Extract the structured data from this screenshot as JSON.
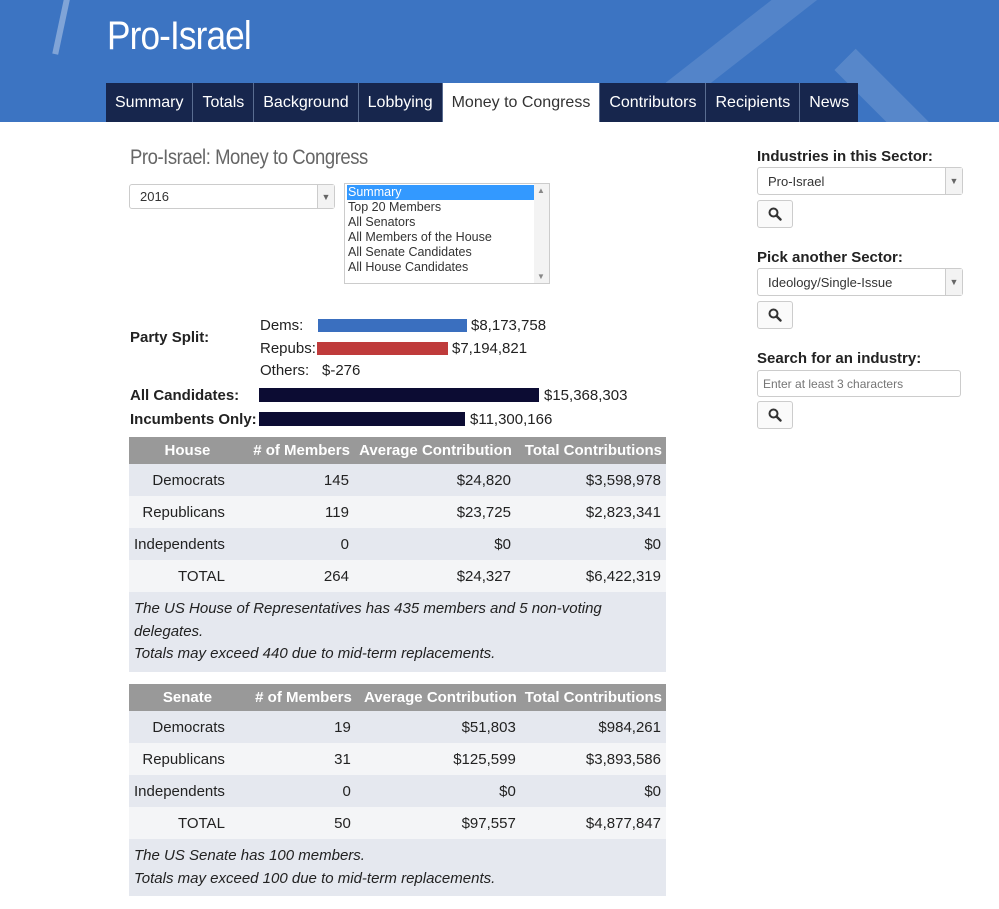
{
  "site": {
    "title": "Pro-Israel"
  },
  "nav": [
    {
      "label": "Summary",
      "active": false
    },
    {
      "label": "Totals",
      "active": false
    },
    {
      "label": "Background",
      "active": false
    },
    {
      "label": "Lobbying",
      "active": false
    },
    {
      "label": "Money to Congress",
      "active": true
    },
    {
      "label": "Contributors",
      "active": false
    },
    {
      "label": "Recipients",
      "active": false
    },
    {
      "label": "News",
      "active": false
    }
  ],
  "main": {
    "heading": "Pro-Israel: Money to Congress",
    "year_select": {
      "value": "2016"
    },
    "view_list": {
      "options": [
        "Summary",
        "Top 20 Members",
        "All Senators",
        "All Members of the House",
        "All Senate Candidates",
        "All House Candidates"
      ],
      "selected": "Summary"
    },
    "party_split": {
      "label": "Party Split:",
      "dems": {
        "label": "Dems:",
        "value": "$8,173,758",
        "amount": 8173758,
        "color": "#3a6fbf"
      },
      "repubs": {
        "label": "Repubs:",
        "value": "$7,194,821",
        "amount": 7194821,
        "color": "#bf3b3b"
      },
      "others": {
        "label": "Others:",
        "value": "$-276"
      }
    },
    "all_candidates": {
      "label": "All Candidates:",
      "value": "$15,368,303",
      "amount": 15368303,
      "color": "#0c0c33"
    },
    "incumbents": {
      "label": "Incumbents Only:",
      "value": "$11,300,166",
      "amount": 11300166,
      "color": "#0c0c33"
    },
    "house_table": {
      "headers": [
        "House",
        "# of Members",
        "Average Contribution",
        "Total Contributions"
      ],
      "rows": [
        [
          "Democrats",
          "145",
          "$24,820",
          "$3,598,978"
        ],
        [
          "Republicans",
          "119",
          "$23,725",
          "$2,823,341"
        ],
        [
          "Independents",
          "0",
          "$0",
          "$0"
        ],
        [
          "TOTAL",
          "264",
          "$24,327",
          "$6,422,319"
        ]
      ],
      "note1": "The US House of Representatives has 435 members and 5 non-voting delegates.",
      "note2": "Totals may exceed 440 due to mid-term replacements."
    },
    "senate_table": {
      "headers": [
        "Senate",
        "# of Members",
        "Average Contribution",
        "Total Contributions"
      ],
      "rows": [
        [
          "Democrats",
          "19",
          "$51,803",
          "$984,261"
        ],
        [
          "Republicans",
          "31",
          "$125,599",
          "$3,893,586"
        ],
        [
          "Independents",
          "0",
          "$0",
          "$0"
        ],
        [
          "TOTAL",
          "50",
          "$97,557",
          "$4,877,847"
        ]
      ],
      "note1": "The US Senate has 100 members.",
      "note2": "Totals may exceed 100 due to mid-term replacements."
    }
  },
  "sidebar": {
    "industries_label": "Industries in this Sector:",
    "industries_value": "Pro-Israel",
    "sector_label": "Pick another Sector:",
    "sector_value": "Ideology/Single-Issue",
    "search_label": "Search for an industry:",
    "search_placeholder": "Enter at least 3 characters",
    "button_icon": "search-icon"
  }
}
